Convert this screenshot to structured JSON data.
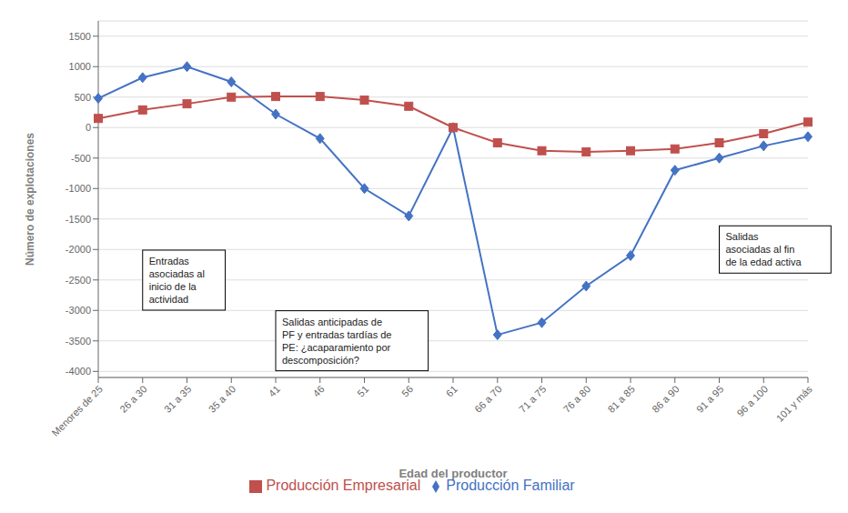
{
  "chart_data": {
    "type": "line",
    "categories": [
      "Menores de 25",
      "26 a 30",
      "31 a 35",
      "35 a 40",
      "41",
      "46",
      "51",
      "56",
      "61",
      "66 a 70",
      "71 a 75",
      "76 a 80",
      "81 a 85",
      "86 a 90",
      "91 a 95",
      "96 a 100",
      "101 y más"
    ],
    "series": [
      {
        "name": "Producción Familiar",
        "color": "#4472C4",
        "marker": "diamond",
        "values": [
          480,
          820,
          1000,
          750,
          220,
          -180,
          -1000,
          -1450,
          0,
          -3400,
          -3200,
          -2600,
          -2100,
          -700,
          -500,
          -300,
          -150
        ]
      },
      {
        "name": "Producción Empresarial",
        "color": "#C0504D",
        "marker": "square",
        "values": [
          150,
          290,
          390,
          500,
          510,
          510,
          450,
          350,
          0,
          -250,
          -380,
          -400,
          -380,
          -350,
          -250,
          -100,
          90
        ]
      }
    ],
    "xlabel": "Edad del productor",
    "ylabel": "Número de explotaciones",
    "ylim": [
      -4100,
      1750
    ],
    "yticks": [
      -4000,
      -3500,
      -3000,
      -2500,
      -2000,
      -1500,
      -1000,
      -500,
      0,
      500,
      1000,
      1500
    ],
    "grid": true,
    "legend": "bottom",
    "annotations": [
      "Entradas\nasociadas al\ninicio de la\nactividad",
      "Salidas anticipadas de\nPF y entradas tardías de\nPE: ¿acaparamiento por\ndescomposición?",
      "Salidas\nasociadas al fin\nde la edad activa"
    ]
  }
}
